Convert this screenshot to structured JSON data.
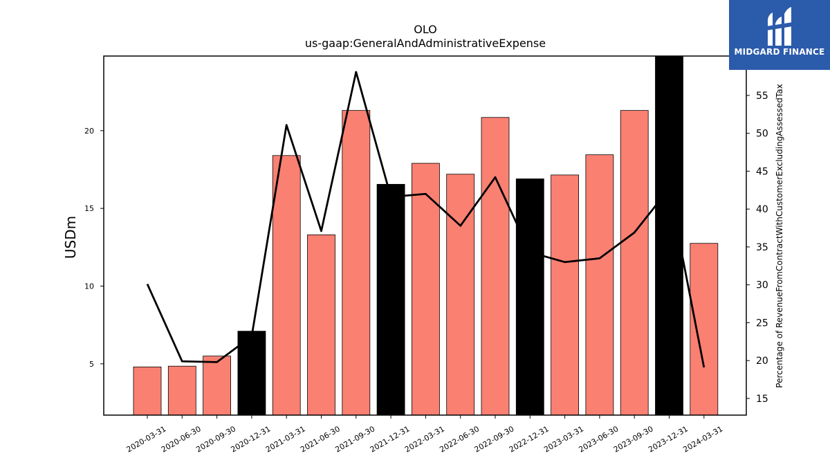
{
  "chart_data": {
    "type": "bar",
    "title": "OLO",
    "subtitle": "us-gaap:GeneralAndAdministrativeExpense",
    "ylabel": "USDm",
    "y2label": "Percentage of RevenueFromContractWithCustomerExcludingAssessedTax",
    "ylim": [
      1.7,
      24.8
    ],
    "y2lim": [
      12.8,
      60.2
    ],
    "yticks": [
      5,
      10,
      15,
      20
    ],
    "y2ticks": [
      15,
      20,
      25,
      30,
      35,
      40,
      45,
      50,
      55
    ],
    "categories": [
      "2020-03-31",
      "2020-06-30",
      "2020-09-30",
      "2020-12-31",
      "2021-03-31",
      "2021-06-30",
      "2021-09-30",
      "2021-12-31",
      "2022-03-31",
      "2022-06-30",
      "2022-09-30",
      "2022-12-31",
      "2023-03-31",
      "2023-06-30",
      "2023-09-30",
      "2023-12-31",
      "2024-03-31"
    ],
    "series": [
      {
        "values": [
          4.8,
          4.85,
          5.5,
          7.1,
          18.4,
          13.3,
          21.3,
          16.55,
          17.9,
          17.2,
          20.85,
          16.9,
          17.15,
          18.45,
          21.3,
          24.8,
          12.75
        ],
        "highlight": [
          false,
          false,
          false,
          true,
          false,
          false,
          false,
          true,
          false,
          false,
          false,
          true,
          false,
          false,
          false,
          true,
          false
        ],
        "color": "#fa8072",
        "highlight_color": "#000000"
      },
      {
        "axis": "right",
        "type": "line",
        "color": "#000000",
        "values": [
          30.1,
          19.9,
          19.8,
          23.2,
          51.1,
          37.1,
          58.1,
          41.6,
          42.0,
          37.8,
          44.2,
          34.3,
          33.0,
          33.5,
          36.9,
          42.7,
          19.1
        ]
      }
    ],
    "grid": false,
    "legend": "none"
  },
  "logo": {
    "text": "MIDGARD FINANCE",
    "background": "#2b5bab"
  }
}
